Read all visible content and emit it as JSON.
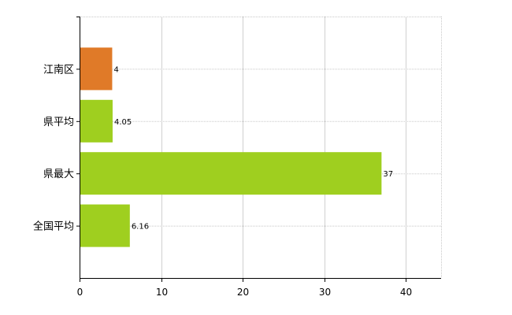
{
  "chart_data": {
    "type": "bar",
    "orientation": "horizontal",
    "categories": [
      "江南区",
      "県平均",
      "県最大",
      "全国平均"
    ],
    "values": [
      4,
      4.05,
      37,
      6.16
    ],
    "value_labels": [
      "4",
      "4.05",
      "37",
      "6.16"
    ],
    "bar_colors": [
      "#e07a28",
      "#9fcf1f",
      "#9fcf1f",
      "#9fcf1f"
    ],
    "xlim": [
      0,
      44.3
    ],
    "xticks": [
      0,
      10,
      20,
      30,
      40
    ],
    "xtick_labels": [
      "0",
      "10",
      "20",
      "30",
      "40"
    ],
    "grid": true,
    "title": "",
    "xlabel": "",
    "ylabel": ""
  }
}
